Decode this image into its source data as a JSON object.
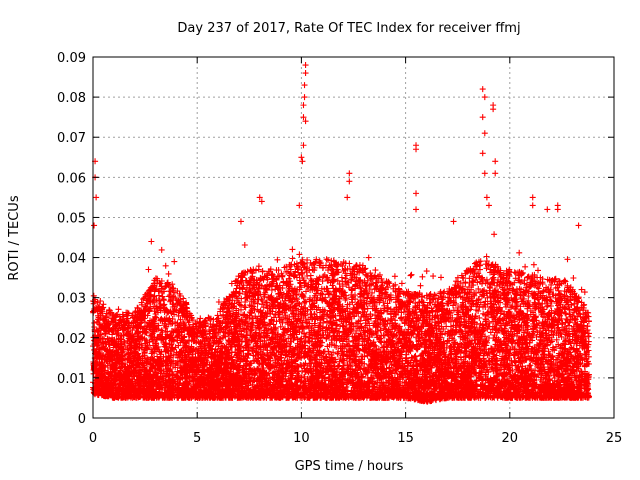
{
  "chart_data": {
    "type": "scatter",
    "title": "Day 237 of 2017, Rate Of TEC Index for receiver ffmj",
    "xlabel": "GPS time / hours",
    "ylabel": "ROTI / TECUs",
    "xlim": [
      0,
      25
    ],
    "ylim": [
      0,
      0.09
    ],
    "x_ticks": [
      0,
      5,
      10,
      15,
      20,
      25
    ],
    "y_ticks": [
      0,
      0.01,
      0.02,
      0.03,
      0.04,
      0.05,
      0.06,
      0.07,
      0.08,
      0.09
    ],
    "y_tick_labels": [
      "0",
      "0.01",
      "0.02",
      "0.03",
      "0.04",
      "0.05",
      "0.06",
      "0.07",
      "0.08",
      "0.09"
    ],
    "grid": true,
    "marker": "+",
    "series_color": "#ff0000",
    "data_extent": {
      "x_min": 0.0,
      "x_max": 23.8
    },
    "envelope": {
      "description": "dense band of ROTI values; lower edge ~0.005, typical upper edge per hour",
      "hours": [
        0,
        1,
        2,
        3,
        4,
        5,
        6,
        7,
        8,
        9,
        10,
        11,
        12,
        13,
        14,
        15,
        16,
        17,
        18,
        19,
        20,
        21,
        22,
        23,
        23.8
      ],
      "upper": [
        0.031,
        0.026,
        0.027,
        0.035,
        0.033,
        0.024,
        0.026,
        0.036,
        0.038,
        0.037,
        0.04,
        0.04,
        0.039,
        0.038,
        0.035,
        0.032,
        0.031,
        0.032,
        0.038,
        0.04,
        0.037,
        0.036,
        0.035,
        0.034,
        0.026
      ],
      "lower": [
        0.006,
        0.005,
        0.005,
        0.005,
        0.005,
        0.005,
        0.005,
        0.005,
        0.005,
        0.005,
        0.005,
        0.005,
        0.005,
        0.005,
        0.005,
        0.005,
        0.004,
        0.005,
        0.005,
        0.005,
        0.005,
        0.005,
        0.005,
        0.005,
        0.005
      ]
    },
    "spikes": [
      {
        "x": 0.1,
        "y": 0.064
      },
      {
        "x": 0.1,
        "y": 0.06
      },
      {
        "x": 0.15,
        "y": 0.055
      },
      {
        "x": 0.05,
        "y": 0.048
      },
      {
        "x": 2.8,
        "y": 0.044
      },
      {
        "x": 3.9,
        "y": 0.039
      },
      {
        "x": 7.1,
        "y": 0.049
      },
      {
        "x": 8.0,
        "y": 0.055
      },
      {
        "x": 8.1,
        "y": 0.054
      },
      {
        "x": 9.9,
        "y": 0.053
      },
      {
        "x": 10.0,
        "y": 0.065
      },
      {
        "x": 10.05,
        "y": 0.064
      },
      {
        "x": 10.1,
        "y": 0.075
      },
      {
        "x": 10.1,
        "y": 0.078
      },
      {
        "x": 10.15,
        "y": 0.08
      },
      {
        "x": 10.15,
        "y": 0.083
      },
      {
        "x": 10.2,
        "y": 0.086
      },
      {
        "x": 10.2,
        "y": 0.088
      },
      {
        "x": 10.2,
        "y": 0.074
      },
      {
        "x": 10.1,
        "y": 0.068
      },
      {
        "x": 12.3,
        "y": 0.061
      },
      {
        "x": 12.3,
        "y": 0.059
      },
      {
        "x": 12.2,
        "y": 0.055
      },
      {
        "x": 15.5,
        "y": 0.068
      },
      {
        "x": 15.5,
        "y": 0.067
      },
      {
        "x": 15.5,
        "y": 0.056
      },
      {
        "x": 15.5,
        "y": 0.052
      },
      {
        "x": 17.3,
        "y": 0.049
      },
      {
        "x": 18.7,
        "y": 0.082
      },
      {
        "x": 18.8,
        "y": 0.08
      },
      {
        "x": 18.7,
        "y": 0.075
      },
      {
        "x": 18.8,
        "y": 0.071
      },
      {
        "x": 18.7,
        "y": 0.066
      },
      {
        "x": 18.8,
        "y": 0.061
      },
      {
        "x": 18.9,
        "y": 0.055
      },
      {
        "x": 19.2,
        "y": 0.078
      },
      {
        "x": 19.2,
        "y": 0.077
      },
      {
        "x": 19.3,
        "y": 0.064
      },
      {
        "x": 19.3,
        "y": 0.061
      },
      {
        "x": 19.0,
        "y": 0.053
      },
      {
        "x": 21.1,
        "y": 0.055
      },
      {
        "x": 21.1,
        "y": 0.053
      },
      {
        "x": 21.8,
        "y": 0.052
      },
      {
        "x": 22.3,
        "y": 0.053
      },
      {
        "x": 22.3,
        "y": 0.052
      },
      {
        "x": 23.3,
        "y": 0.048
      }
    ]
  }
}
